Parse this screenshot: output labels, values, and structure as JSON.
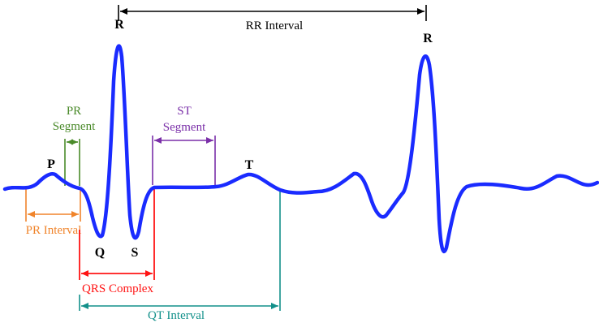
{
  "diagram": {
    "waves": {
      "p": "P",
      "q": "Q",
      "r_first": "R",
      "r_second": "R",
      "s": "S",
      "t": "T"
    },
    "labels": {
      "rr_interval": "RR Interval",
      "pr_segment_line1": "PR",
      "pr_segment_line2": "Segment",
      "st_segment_line1": "ST",
      "st_segment_line2": "Segment",
      "pr_interval": "PR Interval",
      "qrs_complex": "QRS Complex",
      "qt_interval": "QT Interval"
    },
    "colors": {
      "ecg_trace": "#1a2bff",
      "rr_interval": "#000000",
      "pr_segment": "#4a8a2a",
      "st_segment": "#7a2fa8",
      "pr_interval": "#f0842b",
      "qrs_complex": "#ff1414",
      "qt_interval": "#12908a"
    }
  }
}
